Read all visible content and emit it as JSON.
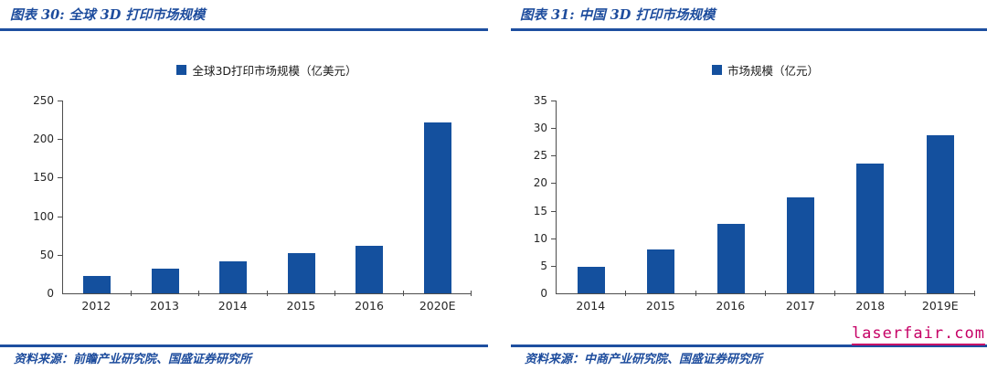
{
  "colors": {
    "accent_blue": "#1e4fa0",
    "bar_fill": "#14509e",
    "axis_gray": "#4d4d4d",
    "text_dark": "#262626",
    "title_blue": "#1d4c9d",
    "watermark_red": "#c60066"
  },
  "watermark": {
    "text": "laserfair.com"
  },
  "chart_data": [
    {
      "type": "bar",
      "figure_label": "图表 30:  全球 3D 打印市场规模",
      "legend": "全球3D打印市场规模（亿美元）",
      "legend_position": "top-center",
      "source_note": "资料来源：前瞻产业研究院、国盛证券研究所",
      "categories": [
        "2012",
        "2013",
        "2014",
        "2015",
        "2016",
        "2020E"
      ],
      "values": [
        23,
        32,
        41,
        52,
        62,
        222
      ],
      "ylim": [
        0,
        250
      ],
      "ystep": 50,
      "grid": false,
      "xlabel": "",
      "ylabel": ""
    },
    {
      "type": "bar",
      "figure_label": "图表 31:  中国 3D 打印市场规模",
      "legend": "市场规模（亿元）",
      "legend_position": "top-center",
      "source_note": "资料来源：中商产业研究院、国盛证券研究所",
      "categories": [
        "2014",
        "2015",
        "2016",
        "2017",
        "2018",
        "2019E"
      ],
      "values": [
        4.8,
        8.0,
        12.6,
        17.5,
        23.5,
        28.7
      ],
      "ylim": [
        0,
        35
      ],
      "ystep": 5,
      "grid": false,
      "xlabel": "",
      "ylabel": ""
    }
  ]
}
